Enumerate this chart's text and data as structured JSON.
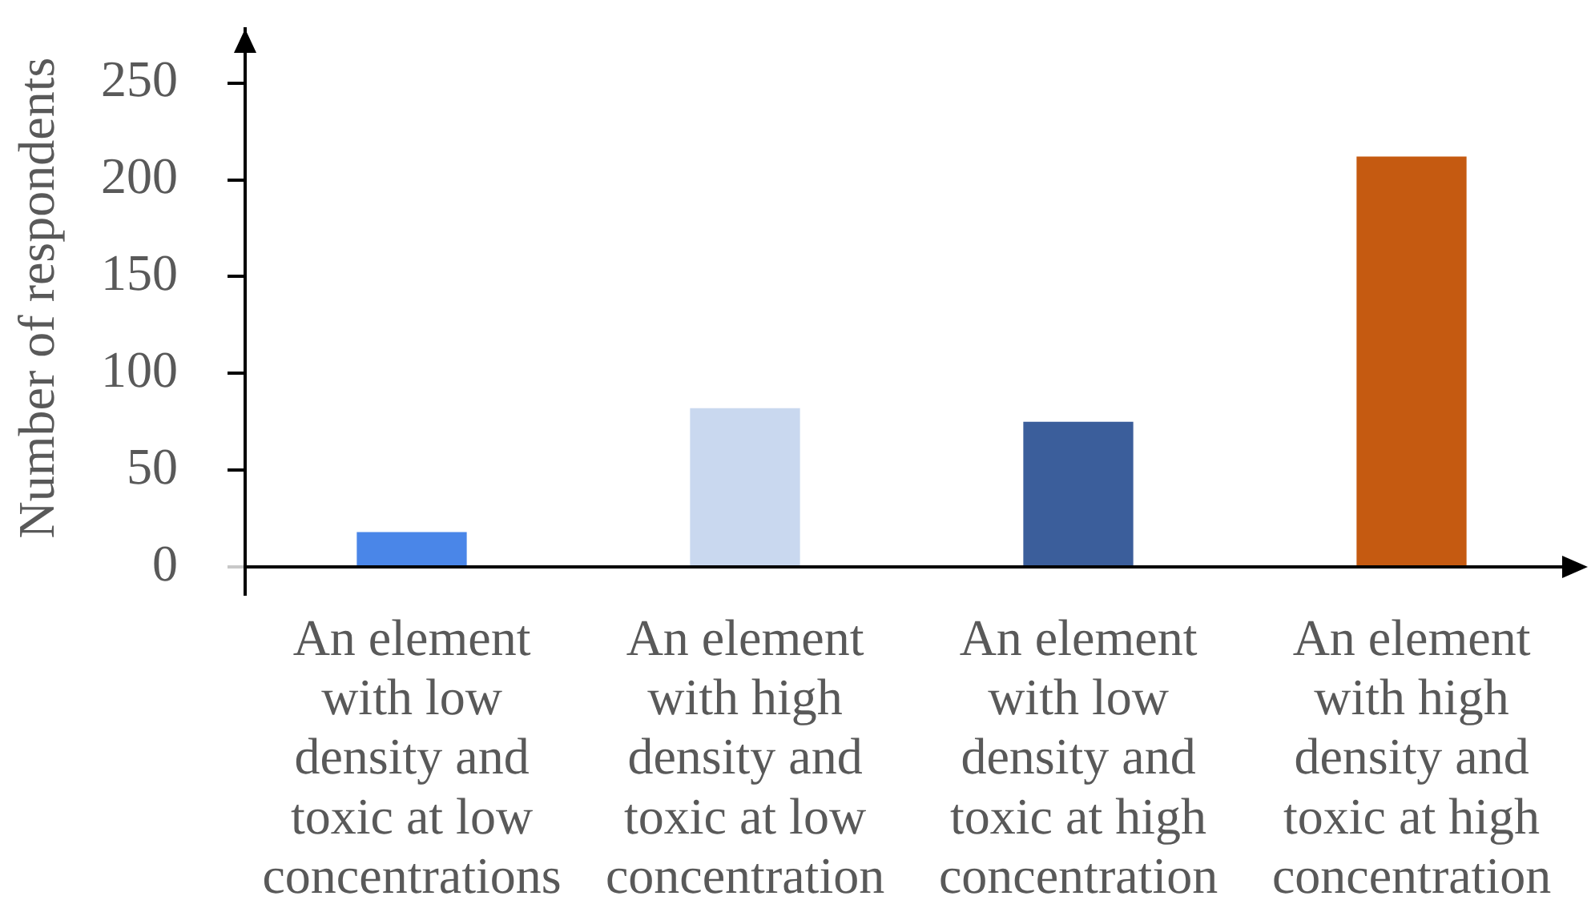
{
  "chart_data": {
    "type": "bar",
    "ylabel": "Number of respondents",
    "categories": [
      "An element with low density and toxic at low concentrations",
      "An element with high density and toxic at low concentration",
      "An element with low density and toxic at high concentration",
      "An element with high density and toxic at high concentration"
    ],
    "values": [
      18,
      82,
      75,
      212
    ],
    "colors": [
      "#4a86e8",
      "#c9d8ef",
      "#3b5e9b",
      "#c55a11"
    ],
    "ylim": [
      0,
      278
    ],
    "yticks": [
      0,
      50,
      100,
      150,
      200,
      250
    ]
  }
}
